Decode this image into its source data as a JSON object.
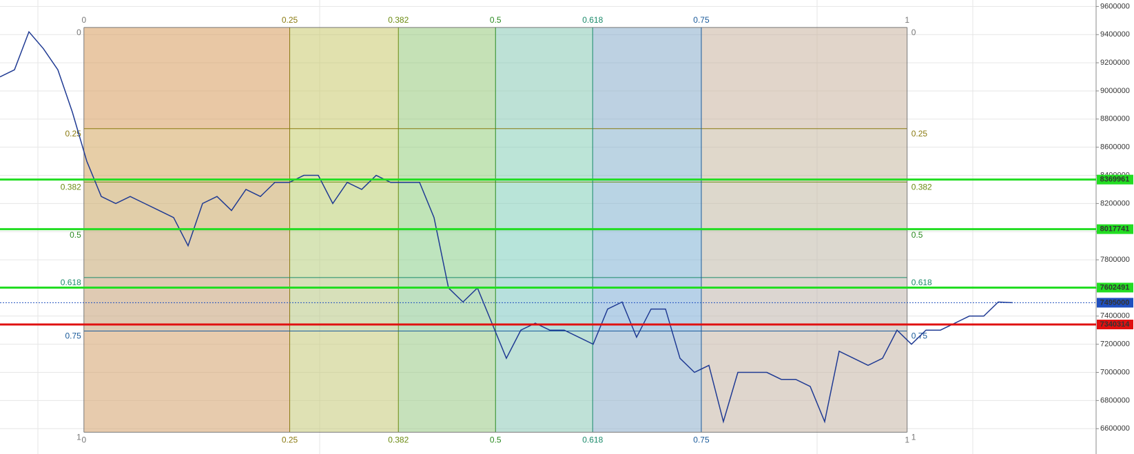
{
  "chart_data": {
    "type": "line",
    "series": [
      {
        "color": "#1f3a93",
        "values": [
          9100000,
          9150000,
          9420000,
          9300000,
          9150000,
          8850000,
          8500000,
          8250000,
          8200000,
          8250000,
          8200000,
          8150000,
          8100000,
          7900000,
          8200000,
          8250000,
          8150000,
          8300000,
          8250000,
          8350000,
          8350000,
          8400000,
          8400000,
          8200000,
          8350000,
          8300000,
          8400000,
          8350000,
          8350000,
          8350000,
          8100000,
          7600000,
          7500000,
          7600000,
          7350000,
          7100000,
          7300000,
          7350000,
          7300000,
          7300000,
          7250000,
          7200000,
          7450000,
          7500000,
          7250000,
          7450000,
          7450000,
          7100000,
          7000000,
          7050000,
          6650000,
          7000000,
          7000000,
          7000000,
          6950000,
          6950000,
          6900000,
          6650000,
          7150000,
          7100000,
          7050000,
          7100000,
          7300000,
          7200000,
          7300000,
          7300000,
          7350000,
          7400000,
          7400000,
          7500000,
          7495000
        ]
      }
    ],
    "ylim": [
      6420000,
      9646000
    ],
    "yticks": [
      6600000,
      6800000,
      7000000,
      7200000,
      7400000,
      7600000,
      7800000,
      8000000,
      8200000,
      8400000,
      8600000,
      8800000,
      9000000,
      9200000,
      9400000,
      9600000
    ],
    "grid": true,
    "price_lines": [
      {
        "value": 8369961,
        "color": "#22dd22"
      },
      {
        "value": 8017741,
        "color": "#22dd22"
      },
      {
        "value": 7602491,
        "color": "#22dd22"
      },
      {
        "value": 7495000,
        "color": "#1f4fbf",
        "dotted": true
      },
      {
        "value": 7340314,
        "color": "#e01010"
      }
    ],
    "fib": {
      "x_start": 5.8,
      "x_end": 62.7,
      "price_top": 9451000,
      "price_bottom": 6575000,
      "levels": [
        0,
        0.25,
        0.382,
        0.5,
        0.618,
        0.75,
        1
      ],
      "colors": [
        "#777777",
        "#8a7a10",
        "#6a8a10",
        "#2a8a20",
        "#1a8a6a",
        "#1a5a9a",
        "#777777"
      ],
      "zone_colors": [
        "#d9a060",
        "#c8d070",
        "#90d080",
        "#80d0c0",
        "#80b0d8",
        "#c8b8a8"
      ]
    }
  }
}
